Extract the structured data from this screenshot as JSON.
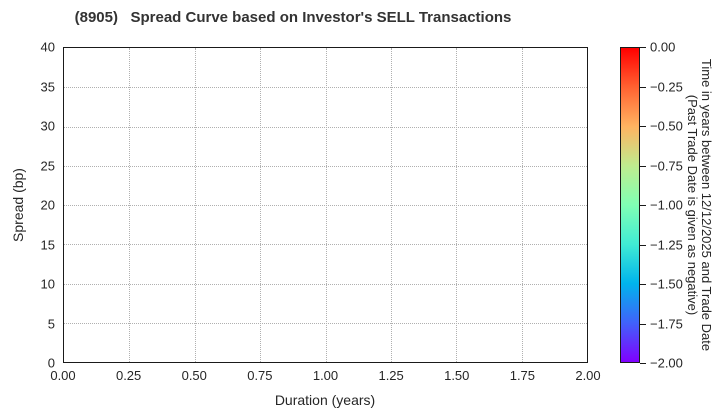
{
  "title": "(8905)   Spread Curve based on Investor's SELL Transactions",
  "chart_data": {
    "type": "scatter",
    "title": "(8905)   Spread Curve based on Investor's SELL Transactions",
    "xlabel": "Duration (years)",
    "ylabel": "Spread (bp)",
    "xlim": [
      0.0,
      2.0
    ],
    "ylim": [
      0,
      40
    ],
    "x_tick_labels": [
      "0.00",
      "0.25",
      "0.50",
      "0.75",
      "1.00",
      "1.25",
      "1.50",
      "1.75",
      "2.00"
    ],
    "y_tick_labels": [
      "0",
      "5",
      "10",
      "15",
      "20",
      "25",
      "30",
      "35",
      "40"
    ],
    "grid": true,
    "grid_style": "dotted",
    "legend": false,
    "series": [],
    "colorbar": {
      "title_line1": "Time in years between 12/12/2025 and Trade Date",
      "title_line2": "(Past Trade Date is given as negative)",
      "max": 0.0,
      "min": -2.0,
      "tick_labels": [
        "0.00",
        "−0.25",
        "−0.50",
        "−0.75",
        "−1.00",
        "−1.25",
        "−1.50",
        "−1.75",
        "−2.00"
      ],
      "colormap": "rainbow",
      "gradient_top_to_bottom": [
        "#ff0000",
        "#ff6231",
        "#ffb461",
        "#bfec8e",
        "#80ffb4",
        "#40ecd4",
        "#00b4ec",
        "#4062fa",
        "#8000ff"
      ]
    }
  },
  "colors": {
    "spine": "#1a1a1a",
    "grid": "#b0b0b0",
    "tick_text": "#262626",
    "title_text": "#333333",
    "background": "#ffffff"
  }
}
